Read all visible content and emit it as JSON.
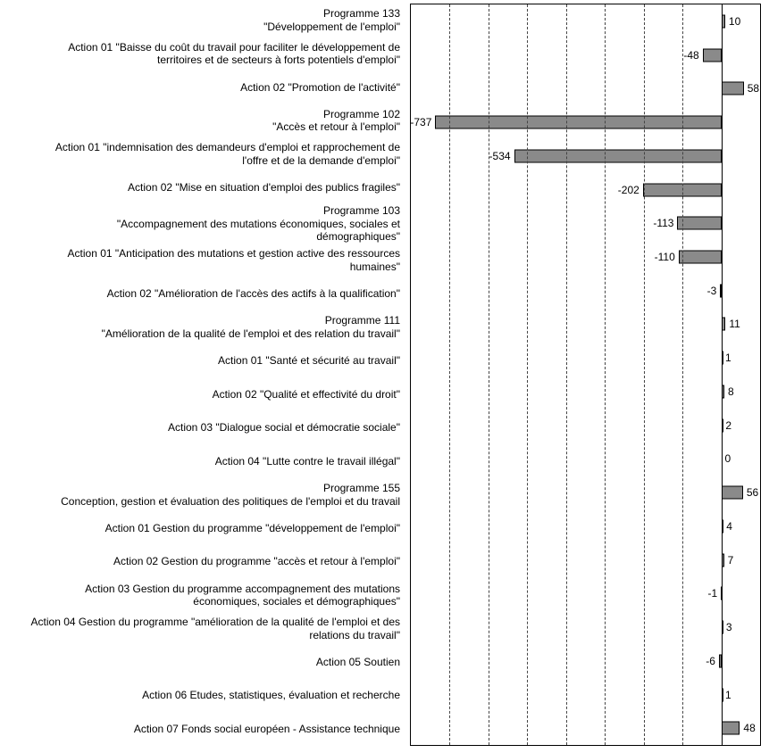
{
  "chart_data": {
    "type": "bar",
    "orientation": "horizontal",
    "title": "",
    "xlabel": "",
    "ylabel": "",
    "xlim": [
      -800,
      100
    ],
    "gridline_step": 100,
    "grid": true,
    "legend": "none",
    "bar_fill_color": "#8a8a8a",
    "bar_border_color": "#000000",
    "categories": [
      "Programme 133\n\"Développement de l'emploi\"",
      "Action 01 \"Baisse du coût du travail pour faciliter le développement de\nterritoires et de secteurs à forts potentiels d'emploi\"",
      "Action 02 \"Promotion de l'activité\"",
      "Programme 102\n\"Accès et retour à l'emploi\"",
      "Action 01 \"indemnisation des demandeurs d'emploi et rapprochement de\nl'offre et de la demande d'emploi\"",
      "Action 02 \"Mise en situation d'emploi des publics fragiles\"",
      "Programme 103\n\"Accompagnement des mutations économiques, sociales et\ndémographiques\"",
      "Action 01 \"Anticipation des mutations et gestion active des ressources\nhumaines\"",
      "Action 02 \"Amélioration de l'accès des actifs à la qualification\"",
      "Programme 111\n\"Amélioration de la qualité de l'emploi et des relation du travail\"",
      "Action 01 \"Santé et sécurité au travail\"",
      "Action 02 \"Qualité et effectivité du droit\"",
      "Action 03 \"Dialogue social et démocratie sociale\"",
      "Action 04 \"Lutte contre le travail illégal\"",
      "Programme 155\nConception, gestion et évaluation des politiques de l'emploi et du travail",
      "Action 01 Gestion du programme \"développement de l'emploi\"",
      "Action 02 Gestion du programme \"accès et retour à l'emploi\"",
      "Action 03 Gestion du programme accompagnement des mutations\néconomiques, sociales et démographiques\"",
      "Action 04 Gestion du programme \"amélioration de la qualité de l'emploi et des\nrelations du travail\"",
      "Action 05 Soutien",
      "Action 06 Etudes, statistiques, évaluation et recherche",
      "Action 07 Fonds social européen - Assistance technique"
    ],
    "values": [
      10,
      -48,
      58,
      -737,
      -534,
      -202,
      -113,
      -110,
      -3,
      11,
      1,
      8,
      2,
      0,
      56,
      4,
      7,
      -1,
      3,
      -6,
      1,
      48
    ]
  }
}
